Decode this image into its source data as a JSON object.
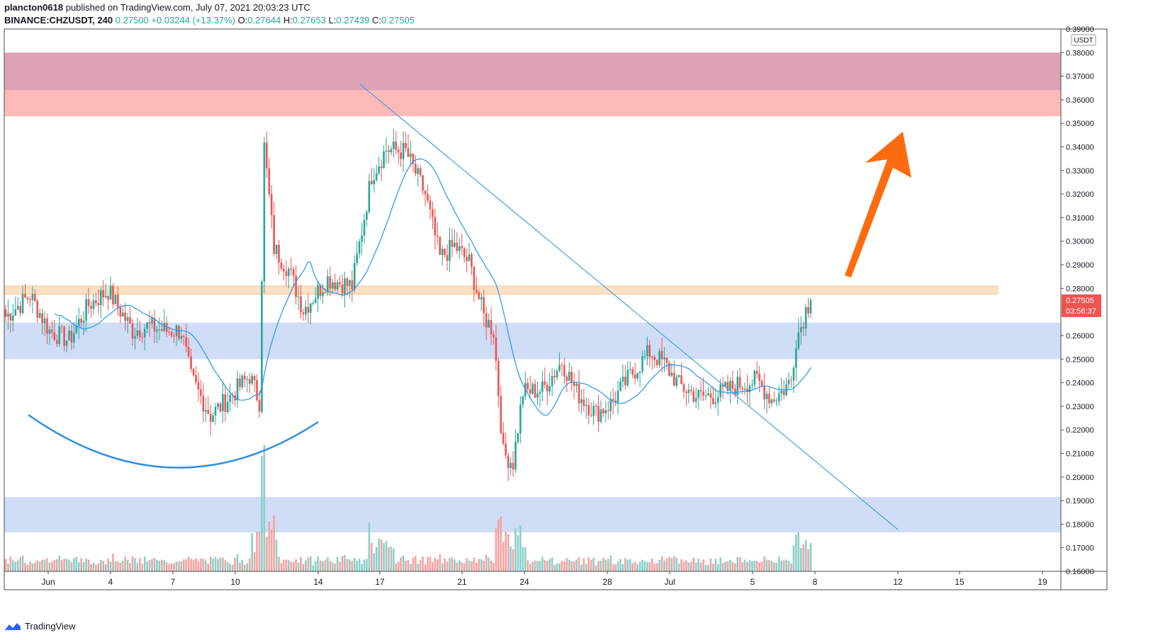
{
  "header": {
    "author": "plancton0618",
    "published_text": "published on TradingView.com, July 07, 2021 20:03:23 UTC",
    "symbol": "BINANCE:CHZUSDT, 240",
    "last": "0.27500",
    "change": "+0.03244 (+13.37%)",
    "open_label": "O:",
    "open": "0.27644",
    "high_label": "H:",
    "high": "0.27653",
    "low_label": "L:",
    "low": "0.27439",
    "close_label": "C:",
    "close": "0.27505"
  },
  "footer": {
    "brand": "TradingView"
  },
  "chart_data": {
    "type": "candlestick",
    "currency": "USDT",
    "ylim": [
      0.16,
      0.39
    ],
    "y_ticks": [
      "0.16000",
      "0.17000",
      "0.18000",
      "0.19000",
      "0.20000",
      "0.21000",
      "0.22000",
      "0.23000",
      "0.24000",
      "0.25000",
      "0.26000",
      "0.27000",
      "0.28000",
      "0.29000",
      "0.30000",
      "0.31000",
      "0.32000",
      "0.33000",
      "0.34000",
      "0.35000",
      "0.36000",
      "0.37000",
      "0.38000",
      "0.39000"
    ],
    "x_ticks": [
      "Jun",
      "4",
      "7",
      "10",
      "14",
      "17",
      "21",
      "24",
      "28",
      "Jul",
      "5",
      "8",
      "12",
      "15",
      "19"
    ],
    "price_tag": {
      "value": 0.27505,
      "label": "0.27505",
      "countdown": "03:56:37"
    },
    "zones": [
      {
        "from": 0.364,
        "to": 0.38,
        "color": "#dba3b4"
      },
      {
        "from": 0.353,
        "to": 0.364,
        "color": "#ffb9b9"
      },
      {
        "from": 0.2775,
        "to": 0.281,
        "color": "#ffe0c4"
      },
      {
        "from": 0.25,
        "to": 0.2655,
        "color": "#cfddf7"
      },
      {
        "from": 0.1765,
        "to": 0.1915,
        "color": "#cfddf7"
      }
    ],
    "up_color": "#26a69a",
    "down_color": "#ef5350",
    "ma_color": "#2196f3",
    "arrow_color": "#ff6b0f",
    "close_anchors": [
      [
        0,
        0.268
      ],
      [
        10,
        0.277
      ],
      [
        18,
        0.262
      ],
      [
        26,
        0.258
      ],
      [
        34,
        0.273
      ],
      [
        42,
        0.279
      ],
      [
        52,
        0.262
      ],
      [
        58,
        0.264
      ],
      [
        66,
        0.262
      ],
      [
        72,
        0.262
      ],
      [
        76,
        0.242
      ],
      [
        84,
        0.226
      ],
      [
        92,
        0.234
      ],
      [
        100,
        0.243
      ],
      [
        104,
        0.232
      ],
      [
        106,
        0.34
      ],
      [
        110,
        0.297
      ],
      [
        116,
        0.288
      ],
      [
        122,
        0.271
      ],
      [
        132,
        0.284
      ],
      [
        142,
        0.281
      ],
      [
        150,
        0.328
      ],
      [
        156,
        0.339
      ],
      [
        164,
        0.338
      ],
      [
        172,
        0.32
      ],
      [
        178,
        0.293
      ],
      [
        184,
        0.298
      ],
      [
        190,
        0.291
      ],
      [
        196,
        0.268
      ],
      [
        200,
        0.262
      ],
      [
        204,
        0.21
      ],
      [
        208,
        0.206
      ],
      [
        212,
        0.236
      ],
      [
        220,
        0.237
      ],
      [
        228,
        0.249
      ],
      [
        234,
        0.236
      ],
      [
        242,
        0.227
      ],
      [
        248,
        0.231
      ],
      [
        256,
        0.243
      ],
      [
        264,
        0.253
      ],
      [
        270,
        0.248
      ],
      [
        276,
        0.239
      ],
      [
        284,
        0.234
      ],
      [
        292,
        0.235
      ],
      [
        300,
        0.239
      ],
      [
        308,
        0.241
      ],
      [
        314,
        0.233
      ],
      [
        318,
        0.236
      ],
      [
        322,
        0.241
      ],
      [
        324,
        0.259
      ],
      [
        326,
        0.264
      ],
      [
        328,
        0.271
      ],
      [
        330,
        0.275
      ]
    ]
  }
}
